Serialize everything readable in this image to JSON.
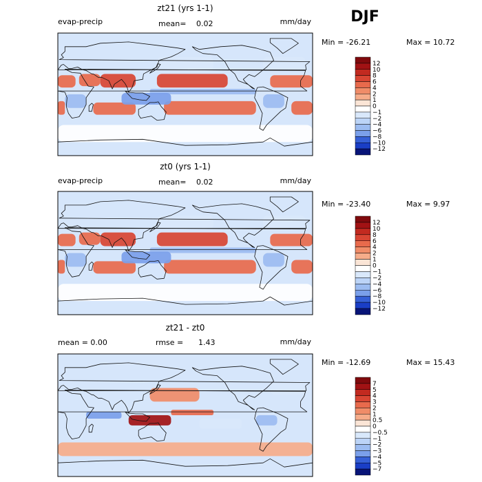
{
  "season": "DJF",
  "colors": {
    "positive": [
      "#fbe5d6",
      "#f9cbb0",
      "#f6ac8a",
      "#f08c68",
      "#e86a4c",
      "#d84533",
      "#c22a20",
      "#a11214",
      "#800a0d"
    ],
    "zero": "#ffffff",
    "negative": [
      "#d9e8fb",
      "#bcd4f7",
      "#9cbcf1",
      "#7ba0ea",
      "#5a82e2",
      "#3660d6",
      "#1a3ec6",
      "#0d22a8",
      "#081478"
    ],
    "land_outline": "#111111",
    "ocean_base": "#d6e6fb"
  },
  "chart_data": [
    {
      "type": "heatmap",
      "name": "panel-zt21",
      "title": "zt21 (yrs 1-1)",
      "left_label": "evap-precip",
      "center_label": "mean=",
      "center_value": "0.02",
      "units": "mm/day",
      "min_label": "Min = -26.21",
      "max_label": "Max = 10.72",
      "legend_ticks": [
        "12",
        "10",
        "8",
        "6",
        "4",
        "2",
        "1",
        "0",
        "-1",
        "-2",
        "-4",
        "-6",
        "-8",
        "-10",
        "-12"
      ],
      "legend_colors": [
        "#800a0d",
        "#a11214",
        "#c22a20",
        "#d84533",
        "#e86a4c",
        "#f08c68",
        "#f6ac8a",
        "#fbe5d6",
        "#ffffff",
        "#d9e8fb",
        "#bcd4f7",
        "#9cbcf1",
        "#7ba0ea",
        "#3660d6",
        "#1a3ec6",
        "#081478"
      ],
      "lon_range": [
        0,
        360
      ],
      "lat_range": [
        -90,
        90
      ],
      "field": [
        {
          "lon": [
            60,
            110
          ],
          "lat": [
            10,
            30
          ],
          "value": 6
        },
        {
          "lon": [
            30,
            60
          ],
          "lat": [
            12,
            30
          ],
          "value": 4
        },
        {
          "lon": [
            140,
            240
          ],
          "lat": [
            10,
            30
          ],
          "value": 6
        },
        {
          "lon": [
            300,
            360
          ],
          "lat": [
            10,
            28
          ],
          "value": 5
        },
        {
          "lon": [
            0,
            25
          ],
          "lat": [
            10,
            28
          ],
          "value": 4
        },
        {
          "lon": [
            150,
            280
          ],
          "lat": [
            -30,
            -10
          ],
          "value": 5
        },
        {
          "lon": [
            50,
            110
          ],
          "lat": [
            -30,
            -12
          ],
          "value": 5
        },
        {
          "lon": [
            330,
            360
          ],
          "lat": [
            -30,
            -10
          ],
          "value": 4
        },
        {
          "lon": [
            0,
            10
          ],
          "lat": [
            -30,
            -10
          ],
          "value": 4
        },
        {
          "lon": [
            130,
            280
          ],
          "lat": [
            0,
            8
          ],
          "value": -6
        },
        {
          "lon": [
            90,
            160
          ],
          "lat": [
            -15,
            2
          ],
          "value": -8
        },
        {
          "lon": [
            10,
            40
          ],
          "lat": [
            -20,
            0
          ],
          "value": -5
        },
        {
          "lon": [
            290,
            320
          ],
          "lat": [
            -20,
            0
          ],
          "value": -6
        },
        {
          "lon": [
            140,
            220
          ],
          "lat": [
            35,
            55
          ],
          "value": -2
        },
        {
          "lon": [
            290,
            350
          ],
          "lat": [
            35,
            55
          ],
          "value": -2
        },
        {
          "lon": [
            0,
            360
          ],
          "lat": [
            -70,
            -45
          ],
          "value": -1
        }
      ]
    },
    {
      "type": "heatmap",
      "name": "panel-zt0",
      "title": "zt0 (yrs 1-1)",
      "left_label": "evap-precip",
      "center_label": "mean=",
      "center_value": "0.02",
      "units": "mm/day",
      "min_label": "Min = -23.40",
      "max_label": "Max =   9.97",
      "legend_ticks": [
        "12",
        "10",
        "8",
        "6",
        "4",
        "2",
        "1",
        "0",
        "-1",
        "-2",
        "-4",
        "-6",
        "-8",
        "-10",
        "-12"
      ],
      "legend_colors": [
        "#800a0d",
        "#a11214",
        "#c22a20",
        "#d84533",
        "#e86a4c",
        "#f08c68",
        "#f6ac8a",
        "#fbe5d6",
        "#ffffff",
        "#d9e8fb",
        "#bcd4f7",
        "#9cbcf1",
        "#7ba0ea",
        "#3660d6",
        "#1a3ec6",
        "#081478"
      ],
      "lon_range": [
        0,
        360
      ],
      "lat_range": [
        -90,
        90
      ],
      "field": [
        {
          "lon": [
            60,
            110
          ],
          "lat": [
            10,
            30
          ],
          "value": 6
        },
        {
          "lon": [
            30,
            60
          ],
          "lat": [
            12,
            30
          ],
          "value": 4
        },
        {
          "lon": [
            140,
            240
          ],
          "lat": [
            10,
            30
          ],
          "value": 6
        },
        {
          "lon": [
            300,
            360
          ],
          "lat": [
            10,
            28
          ],
          "value": 5
        },
        {
          "lon": [
            0,
            25
          ],
          "lat": [
            10,
            28
          ],
          "value": 4
        },
        {
          "lon": [
            150,
            280
          ],
          "lat": [
            -30,
            -10
          ],
          "value": 5
        },
        {
          "lon": [
            50,
            110
          ],
          "lat": [
            -30,
            -12
          ],
          "value": 5
        },
        {
          "lon": [
            330,
            360
          ],
          "lat": [
            -30,
            -10
          ],
          "value": 4
        },
        {
          "lon": [
            0,
            10
          ],
          "lat": [
            -30,
            -10
          ],
          "value": 4
        },
        {
          "lon": [
            130,
            280
          ],
          "lat": [
            0,
            8
          ],
          "value": -6
        },
        {
          "lon": [
            90,
            160
          ],
          "lat": [
            -15,
            2
          ],
          "value": -8
        },
        {
          "lon": [
            10,
            40
          ],
          "lat": [
            -20,
            0
          ],
          "value": -5
        },
        {
          "lon": [
            290,
            320
          ],
          "lat": [
            -20,
            0
          ],
          "value": -6
        },
        {
          "lon": [
            140,
            220
          ],
          "lat": [
            35,
            55
          ],
          "value": -2
        },
        {
          "lon": [
            290,
            350
          ],
          "lat": [
            35,
            55
          ],
          "value": -2
        },
        {
          "lon": [
            0,
            360
          ],
          "lat": [
            -70,
            -45
          ],
          "value": -1
        }
      ]
    },
    {
      "type": "heatmap",
      "name": "panel-diff",
      "title": "zt21 - zt0",
      "left_label": "mean =   0.00",
      "center_label": "rmse =",
      "center_value": "1.43",
      "units": "mm/day",
      "min_label": "Min = -12.69",
      "max_label": "Max = 15.43",
      "legend_ticks": [
        "7",
        "5",
        "4",
        "3",
        "2",
        "1",
        "0.5",
        "0",
        "-0.5",
        "-1",
        "-2",
        "-3",
        "-4",
        "-5",
        "-7"
      ],
      "legend_colors": [
        "#800a0d",
        "#a11214",
        "#c22a20",
        "#d84533",
        "#e86a4c",
        "#f08c68",
        "#f6ac8a",
        "#fbe5d6",
        "#ffffff",
        "#d9e8fb",
        "#bcd4f7",
        "#9cbcf1",
        "#7ba0ea",
        "#3660d6",
        "#1a3ec6",
        "#081478"
      ],
      "lon_range": [
        0,
        360
      ],
      "lat_range": [
        -90,
        90
      ],
      "field": [
        {
          "lon": [
            100,
            160
          ],
          "lat": [
            -15,
            0
          ],
          "value": 5
        },
        {
          "lon": [
            40,
            90
          ],
          "lat": [
            -5,
            5
          ],
          "value": -4
        },
        {
          "lon": [
            160,
            220
          ],
          "lat": [
            0,
            8
          ],
          "value": 2
        },
        {
          "lon": [
            280,
            310
          ],
          "lat": [
            -15,
            0
          ],
          "value": -3
        },
        {
          "lon": [
            130,
            200
          ],
          "lat": [
            20,
            40
          ],
          "value": 1
        },
        {
          "lon": [
            200,
            260
          ],
          "lat": [
            -20,
            -5
          ],
          "value": -1
        },
        {
          "lon": [
            0,
            360
          ],
          "lat": [
            -60,
            -40
          ],
          "value": 0.5
        },
        {
          "lon": [
            300,
            350
          ],
          "lat": [
            30,
            50
          ],
          "value": -1
        }
      ]
    }
  ]
}
